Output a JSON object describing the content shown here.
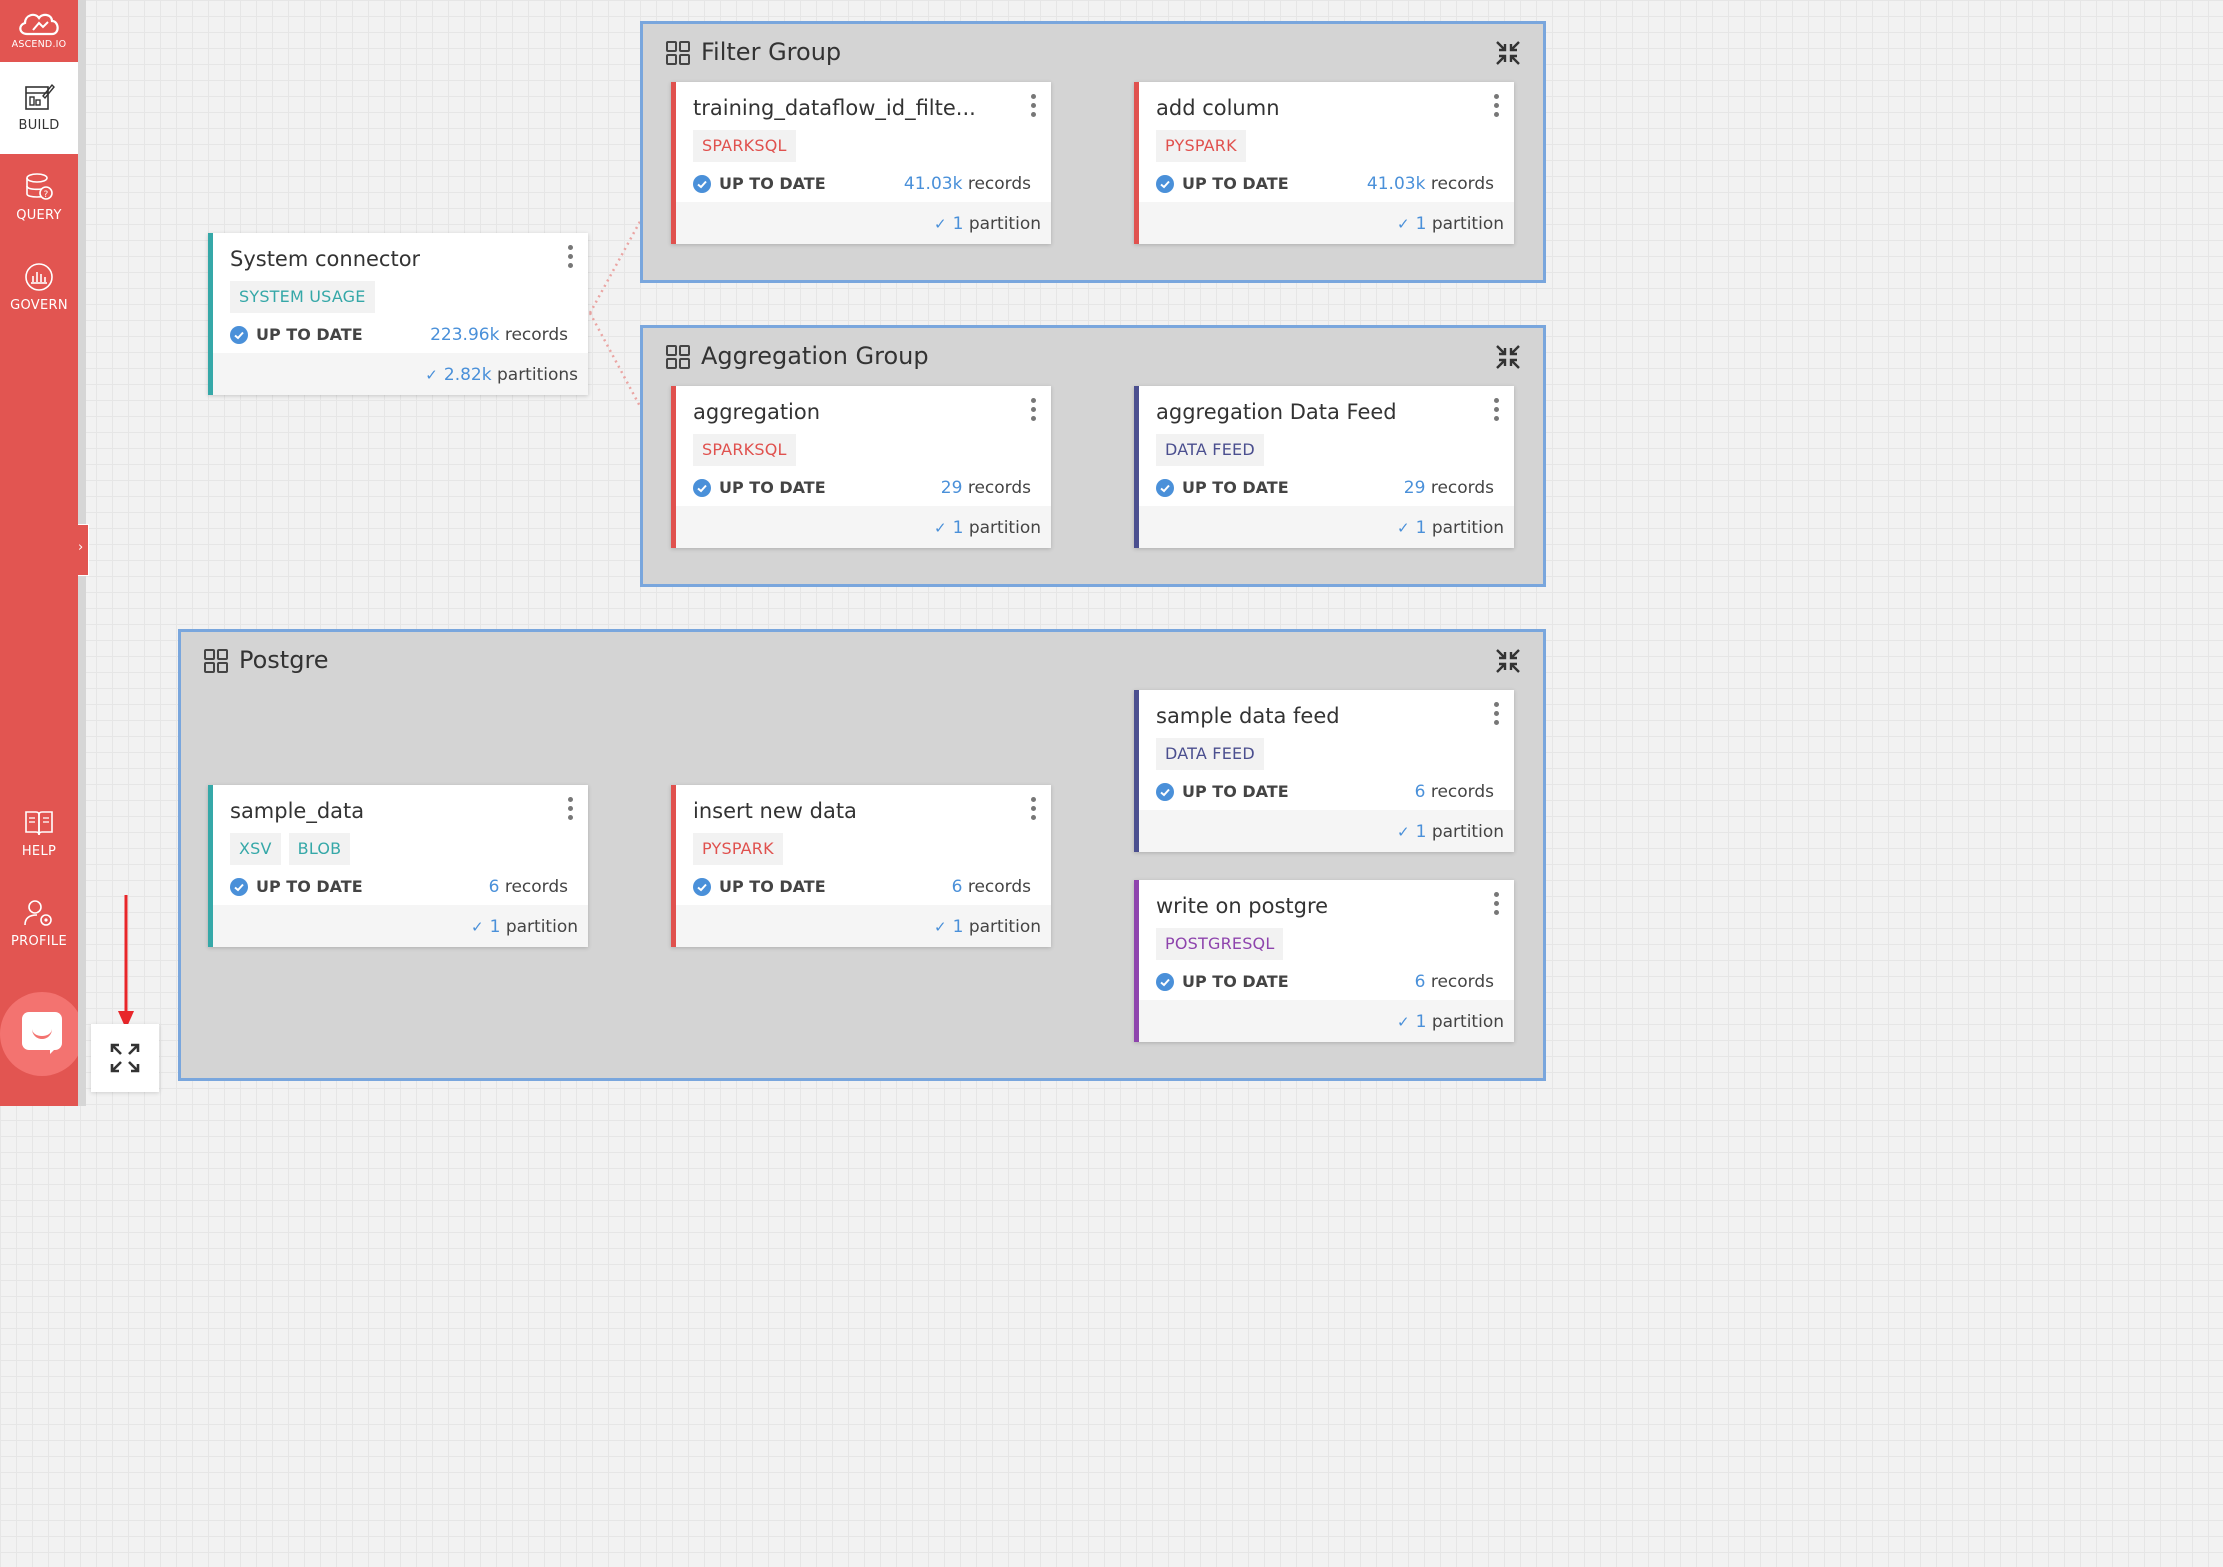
{
  "app": {
    "logo_text": "ASCEND.IO"
  },
  "sidebar": {
    "items": [
      {
        "label": "BUILD",
        "icon": "build-icon",
        "active": true
      },
      {
        "label": "QUERY",
        "icon": "query-icon"
      },
      {
        "label": "GOVERN",
        "icon": "govern-icon"
      },
      {
        "label": "HELP",
        "icon": "help-icon"
      },
      {
        "label": "PROFILE",
        "icon": "profile-icon"
      }
    ]
  },
  "colors": {
    "brand": "#e25551",
    "group_border": "#79a6dd",
    "sparksql": "#e0514e",
    "pyspark": "#e0514e",
    "system_usage": "#35a8a8",
    "data_feed": "#4b4f8f",
    "postgresql": "#8e44ad",
    "xsv": "#35a8a8",
    "link_blue": "#4a90d9"
  },
  "groups": {
    "filter": {
      "title": "Filter Group"
    },
    "aggregation": {
      "title": "Aggregation Group"
    },
    "postgre": {
      "title": "Postgre"
    }
  },
  "status_label": "UP TO DATE",
  "records_label": "records",
  "cards": {
    "system_connector": {
      "title": "System connector",
      "tags": [
        "SYSTEM USAGE"
      ],
      "records": "223.96k",
      "partitions": "2.82k",
      "partition_label": "partitions"
    },
    "training": {
      "title": "training_dataflow_id_filte...",
      "tags": [
        "SPARKSQL"
      ],
      "records": "41.03k",
      "partitions": "1",
      "partition_label": "partition"
    },
    "add_column": {
      "title": "add column",
      "tags": [
        "PYSPARK"
      ],
      "records": "41.03k",
      "partitions": "1",
      "partition_label": "partition"
    },
    "aggregation": {
      "title": "aggregation",
      "tags": [
        "SPARKSQL"
      ],
      "records": "29",
      "partitions": "1",
      "partition_label": "partition"
    },
    "aggregation_feed": {
      "title": "aggregation Data Feed",
      "tags": [
        "DATA FEED"
      ],
      "records": "29",
      "partitions": "1",
      "partition_label": "partition"
    },
    "sample_data": {
      "title": "sample_data",
      "tags": [
        "XSV",
        "BLOB"
      ],
      "records": "6",
      "partitions": "1",
      "partition_label": "partition"
    },
    "insert_new_data": {
      "title": "insert new data",
      "tags": [
        "PYSPARK"
      ],
      "records": "6",
      "partitions": "1",
      "partition_label": "partition"
    },
    "sample_data_feed": {
      "title": "sample data feed",
      "tags": [
        "DATA FEED"
      ],
      "records": "6",
      "partitions": "1",
      "partition_label": "partition"
    },
    "write_on_postgre": {
      "title": "write on postgre",
      "tags": [
        "POSTGRESQL"
      ],
      "records": "6",
      "partitions": "1",
      "partition_label": "partition"
    }
  }
}
